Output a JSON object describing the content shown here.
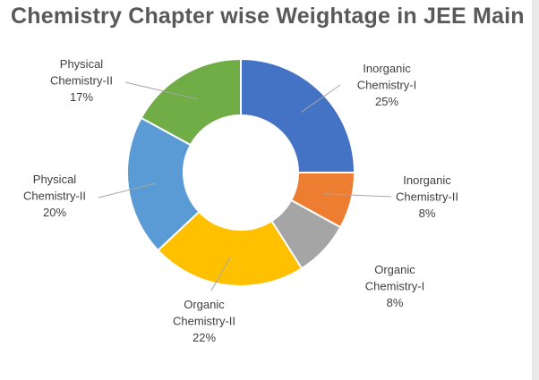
{
  "chart_data": {
    "type": "donut",
    "title": "Chemistry Chapter wise Weightage in JEE Main",
    "slices": [
      {
        "label_lines": [
          "Inorganic",
          "Chemistry-I"
        ],
        "value_label": "25%",
        "value": 25,
        "color": "#4472C4"
      },
      {
        "label_lines": [
          "Inorganic",
          "Chemistry-II"
        ],
        "value_label": "8%",
        "value": 8,
        "color": "#ED7D31"
      },
      {
        "label_lines": [
          "Organic",
          "Chemistry-I"
        ],
        "value_label": "8%",
        "value": 8,
        "color": "#A5A5A5"
      },
      {
        "label_lines": [
          "Organic",
          "Chemistry-II"
        ],
        "value_label": "22%",
        "value": 22,
        "color": "#FFC000"
      },
      {
        "label_lines": [
          "Physical",
          "Chemistry-II"
        ],
        "value_label": "20%",
        "value": 20,
        "color": "#5B9BD5"
      },
      {
        "label_lines": [
          "Physical",
          "Chemistry-II"
        ],
        "value_label": "17%",
        "value": 17,
        "color": "#70AD47"
      }
    ]
  }
}
